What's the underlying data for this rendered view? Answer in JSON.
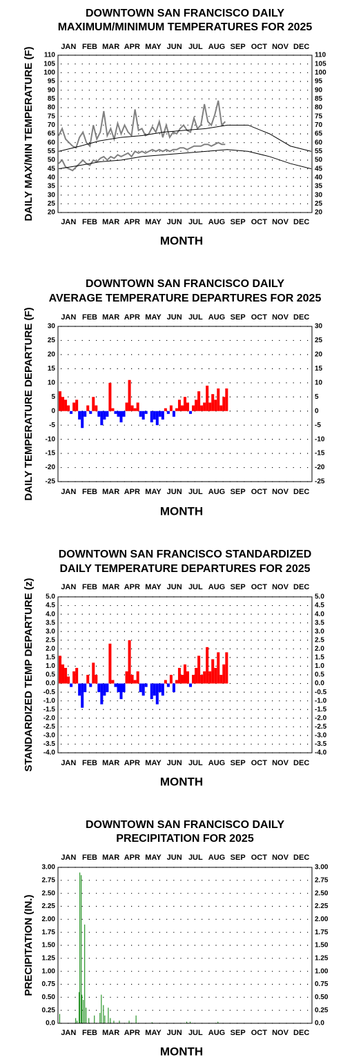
{
  "chart_data": [
    {
      "type": "line",
      "title": [
        "DOWNTOWN SAN FRANCISCO DAILY",
        "MAXIMUM/MINIMUM TEMPERATURES FOR 2025"
      ],
      "ylabel": "DAILY MAX/MIN TEMPERATURE (F)",
      "xlabel": "MONTH",
      "months": [
        "JAN",
        "FEB",
        "MAR",
        "APR",
        "MAY",
        "JUN",
        "JUL",
        "AUG",
        "SEP",
        "OCT",
        "NOV",
        "DEC"
      ],
      "xlim": [
        0,
        366
      ],
      "ylim": [
        20,
        110
      ],
      "yticks": [
        20,
        25,
        30,
        35,
        40,
        45,
        50,
        55,
        60,
        65,
        70,
        75,
        80,
        85,
        90,
        95,
        100,
        105,
        110
      ],
      "series": [
        {
          "color": "#808080",
          "x": [
            1,
            6,
            11,
            16,
            21,
            26,
            31,
            36,
            41,
            46,
            51,
            56,
            61,
            66,
            71,
            76,
            81,
            86,
            91,
            96,
            101,
            106,
            111,
            116,
            121,
            126,
            131,
            136,
            141,
            146,
            151,
            156,
            161,
            166,
            171,
            176,
            181,
            186,
            191,
            196,
            201,
            206,
            211,
            216,
            221,
            226,
            231,
            236,
            241
          ],
          "values": [
            64,
            68,
            62,
            60,
            58,
            57,
            63,
            66,
            60,
            58,
            70,
            62,
            66,
            78,
            64,
            68,
            62,
            71,
            65,
            70,
            66,
            64,
            79,
            67,
            68,
            64,
            65,
            69,
            66,
            72,
            63,
            70,
            63,
            66,
            65,
            68,
            70,
            67,
            66,
            74,
            68,
            70,
            82,
            72,
            70,
            76,
            84,
            70,
            72
          ]
        },
        {
          "color": "#808080",
          "x": [
            1,
            6,
            11,
            16,
            21,
            26,
            31,
            36,
            41,
            46,
            51,
            56,
            61,
            66,
            71,
            76,
            81,
            86,
            91,
            96,
            101,
            106,
            111,
            116,
            121,
            126,
            131,
            136,
            141,
            146,
            151,
            156,
            161,
            166,
            171,
            176,
            181,
            186,
            191,
            196,
            201,
            206,
            211,
            216,
            221,
            226,
            231,
            236,
            241
          ],
          "values": [
            48,
            50,
            46,
            45,
            44,
            46,
            48,
            50,
            48,
            47,
            50,
            49,
            51,
            52,
            50,
            52,
            51,
            53,
            52,
            53,
            54,
            52,
            55,
            54,
            55,
            54,
            55,
            56,
            55,
            56,
            55,
            56,
            55,
            56,
            56,
            57,
            57,
            56,
            57,
            58,
            58,
            58,
            59,
            59,
            58,
            59,
            60,
            59,
            59
          ]
        },
        {
          "color": "#000000",
          "x": [
            1,
            32,
            60,
            91,
            121,
            152,
            182,
            213,
            244,
            274,
            305,
            335,
            365
          ],
          "values": [
            55,
            58,
            61,
            63,
            64,
            66,
            67,
            68,
            70,
            70,
            65,
            58,
            55
          ]
        },
        {
          "color": "#000000",
          "x": [
            1,
            32,
            60,
            91,
            121,
            152,
            182,
            213,
            244,
            274,
            305,
            335,
            365
          ],
          "values": [
            45,
            47,
            49,
            50,
            52,
            53,
            54,
            55,
            56,
            55,
            52,
            48,
            45
          ]
        }
      ]
    },
    {
      "type": "bar",
      "title": [
        "DOWNTOWN SAN FRANCISCO DAILY",
        "AVERAGE TEMPERATURE DEPARTURES FOR 2025"
      ],
      "ylabel": "DAILY TEMPERATURE DEPARTURE (F)",
      "xlabel": "MONTH",
      "months": [
        "JAN",
        "FEB",
        "MAR",
        "APR",
        "MAY",
        "JUN",
        "JUL",
        "AUG",
        "SEP",
        "OCT",
        "NOV",
        "DEC"
      ],
      "xlim": [
        0,
        366
      ],
      "ylim": [
        -25,
        30
      ],
      "yticks": [
        -25,
        -20,
        -15,
        -10,
        -5,
        0,
        5,
        10,
        15,
        20,
        25,
        30
      ],
      "pos_color": "#ff0000",
      "neg_color": "#0000ff",
      "bar_days": 4,
      "x": [
        1,
        5,
        9,
        13,
        17,
        21,
        25,
        29,
        33,
        37,
        41,
        45,
        49,
        53,
        57,
        61,
        65,
        69,
        73,
        77,
        81,
        85,
        89,
        93,
        97,
        101,
        105,
        109,
        113,
        117,
        121,
        125,
        129,
        133,
        137,
        141,
        145,
        149,
        153,
        157,
        161,
        165,
        169,
        173,
        177,
        181,
        185,
        189,
        193,
        197,
        201,
        205,
        209,
        213,
        217,
        221,
        225,
        229,
        233,
        237,
        241
      ],
      "values": [
        7,
        5,
        4,
        2,
        -1,
        3,
        4,
        -3,
        -6,
        -2,
        2,
        -1,
        5,
        2,
        -2,
        -5,
        -3,
        -2,
        10,
        1,
        -1,
        -2,
        -4,
        -2,
        3,
        11,
        2,
        1,
        3,
        -2,
        -3,
        -1,
        0,
        -4,
        -3,
        -5,
        -2,
        -3,
        1,
        -1,
        2,
        -2,
        1,
        4,
        2,
        5,
        3,
        -1,
        2,
        4,
        7,
        2,
        3,
        9,
        3,
        6,
        4,
        8,
        2,
        5,
        8
      ]
    },
    {
      "type": "bar",
      "title": [
        "DOWNTOWN SAN FRANCISCO STANDARDIZED",
        "DAILY TEMPERATURE DEPARTURES FOR 2025"
      ],
      "ylabel": "STANDARDIZED TEMP DEPARTURE (z)",
      "xlabel": "MONTH",
      "months": [
        "JAN",
        "FEB",
        "MAR",
        "APR",
        "MAY",
        "JUN",
        "JUL",
        "AUG",
        "SEP",
        "OCT",
        "NOV",
        "DEC"
      ],
      "xlim": [
        0,
        366
      ],
      "ylim": [
        -4,
        5
      ],
      "yticks": [
        {
          "value": -4,
          "label": "-4.0"
        },
        {
          "value": -3.5,
          "label": "-3.5"
        },
        {
          "value": -3,
          "label": "-3.0"
        },
        {
          "value": -2.5,
          "label": "-2.5"
        },
        {
          "value": -2,
          "label": "-2.0"
        },
        {
          "value": -1.5,
          "label": "-1.5"
        },
        {
          "value": -1,
          "label": "-1.0"
        },
        {
          "value": -0.5,
          "label": "-0.5"
        },
        {
          "value": 0,
          "label": "0.0"
        },
        {
          "value": 0.5,
          "label": "0.5"
        },
        {
          "value": 1,
          "label": "1.0"
        },
        {
          "value": 1.5,
          "label": "1.5"
        },
        {
          "value": 2,
          "label": "2.0"
        },
        {
          "value": 2.5,
          "label": "2.5"
        },
        {
          "value": 3,
          "label": "3.0"
        },
        {
          "value": 3.5,
          "label": "3.5"
        },
        {
          "value": 4,
          "label": "4.0"
        },
        {
          "value": 4.5,
          "label": "4.5"
        },
        {
          "value": 5,
          "label": "5.0"
        }
      ],
      "pos_color": "#ff0000",
      "neg_color": "#0000ff",
      "bar_days": 4,
      "x": [
        1,
        5,
        9,
        13,
        17,
        21,
        25,
        29,
        33,
        37,
        41,
        45,
        49,
        53,
        57,
        61,
        65,
        69,
        73,
        77,
        81,
        85,
        89,
        93,
        97,
        101,
        105,
        109,
        113,
        117,
        121,
        125,
        129,
        133,
        137,
        141,
        145,
        149,
        153,
        157,
        161,
        165,
        169,
        173,
        177,
        181,
        185,
        189,
        193,
        197,
        201,
        205,
        209,
        213,
        217,
        221,
        225,
        229,
        233,
        237,
        241
      ],
      "values": [
        1.6,
        1.1,
        0.9,
        0.4,
        -0.2,
        0.7,
        0.9,
        -0.7,
        -1.4,
        -0.5,
        0.5,
        -0.2,
        1.2,
        0.5,
        -0.5,
        -1.2,
        -0.7,
        -0.5,
        2.3,
        0.2,
        -0.2,
        -0.5,
        -0.9,
        -0.5,
        0.7,
        2.5,
        0.5,
        0.2,
        0.7,
        -0.5,
        -0.7,
        -0.2,
        0,
        -0.9,
        -0.7,
        -1.2,
        -0.5,
        -0.7,
        0.2,
        -0.2,
        0.5,
        -0.5,
        0.2,
        0.9,
        0.5,
        1.1,
        0.7,
        -0.2,
        0.5,
        0.9,
        1.6,
        0.5,
        0.7,
        2.1,
        0.7,
        1.4,
        0.9,
        1.8,
        0.5,
        1.1,
        1.8
      ]
    },
    {
      "type": "bar",
      "title": [
        "DOWNTOWN SAN FRANCISCO DAILY",
        "PRECIPITATION FOR 2025"
      ],
      "ylabel": "PRECIPITATION (IN.)",
      "xlabel": "MONTH",
      "months": [
        "JAN",
        "FEB",
        "MAR",
        "APR",
        "MAY",
        "JUN",
        "JUL",
        "AUG",
        "SEP",
        "OCT",
        "NOV",
        "DEC"
      ],
      "xlim": [
        0,
        366
      ],
      "ylim": [
        0,
        3
      ],
      "yticks": [
        {
          "value": 0,
          "label": "0.0"
        },
        {
          "value": 0.25,
          "label": "0.25"
        },
        {
          "value": 0.5,
          "label": "0.50"
        },
        {
          "value": 0.75,
          "label": "0.75"
        },
        {
          "value": 1,
          "label": "1.00"
        },
        {
          "value": 1.25,
          "label": "1.25"
        },
        {
          "value": 1.5,
          "label": "1.50"
        },
        {
          "value": 1.75,
          "label": "1.75"
        },
        {
          "value": 2,
          "label": "2.00"
        },
        {
          "value": 2.25,
          "label": "2.25"
        },
        {
          "value": 2.5,
          "label": "2.50"
        },
        {
          "value": 2.75,
          "label": "2.75"
        },
        {
          "value": 3,
          "label": "3.00"
        }
      ],
      "pos_color": "#008000",
      "neg_color": "#008000",
      "bar_days": 0.5,
      "x": [
        2,
        25,
        27,
        30,
        31,
        33,
        34,
        36,
        38,
        40,
        44,
        52,
        60,
        62,
        65,
        67,
        72,
        75,
        80,
        88,
        102,
        112,
        135,
        185,
        190,
        230
      ],
      "values": [
        0.18,
        0.1,
        0.05,
        0.6,
        2.9,
        2.85,
        0.55,
        0.45,
        1.9,
        0.3,
        0.1,
        0.15,
        0.2,
        0.55,
        0.35,
        0.15,
        0.3,
        0.1,
        0.05,
        0.05,
        0.05,
        0.15,
        0.02,
        0.03,
        0.03,
        0.03
      ]
    }
  ]
}
